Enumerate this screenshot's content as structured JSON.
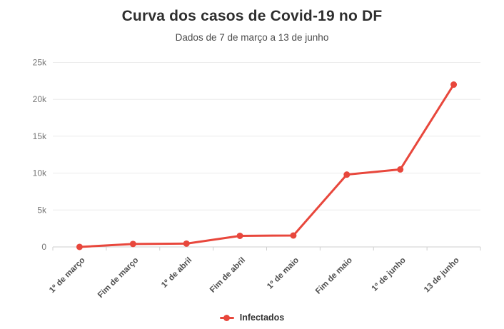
{
  "chart_data": {
    "type": "line",
    "title": "Curva dos casos de Covid-19 no DF",
    "subtitle": "Dados de 7 de março a 13 de junho",
    "categories": [
      "1º de março",
      "Fim de março",
      "1º de abril",
      "Fim de abril",
      "1º de maio",
      "Fim de maio",
      "1º de junho",
      "13 de junho"
    ],
    "series": [
      {
        "name": "Infectados",
        "color": "#e8473c",
        "values": [
          1,
          400,
          450,
          1500,
          1550,
          9800,
          10500,
          22000
        ]
      }
    ],
    "y_ticks": [
      {
        "label": "0",
        "value": 0
      },
      {
        "label": "5k",
        "value": 5000
      },
      {
        "label": "10k",
        "value": 10000
      },
      {
        "label": "15k",
        "value": 15000
      },
      {
        "label": "20k",
        "value": 20000
      },
      {
        "label": "25k",
        "value": 25000
      }
    ],
    "ylim": [
      0,
      25000
    ],
    "grid": "horizontal",
    "legend_position": "bottom",
    "colors": {
      "background": "#ffffff",
      "grid": "#ebebeb",
      "axis": "#cfcfcf",
      "y_label": "#767676",
      "x_label": "#4d4d4d",
      "title": "#2e2e2e",
      "subtitle": "#4a4a4a"
    }
  }
}
